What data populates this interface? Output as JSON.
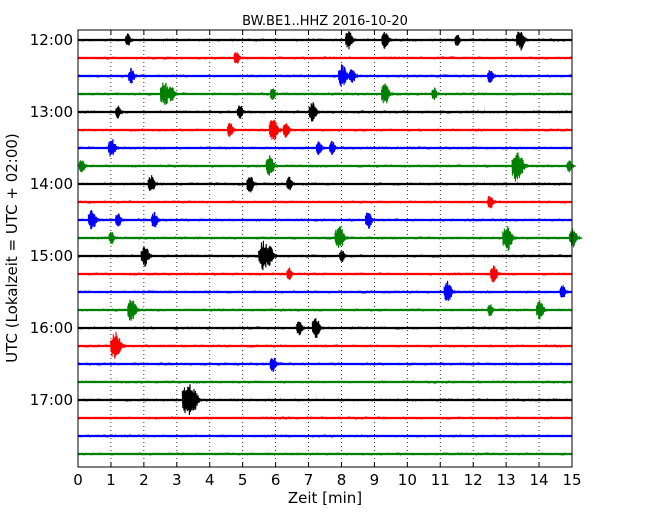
{
  "chart_data": {
    "type": "line",
    "title": "BW.BE1..HHZ 2016-10-20",
    "xlabel": "Zeit  [min]",
    "ylabel": "UTC (Lokalzeit = UTC + 02:00)",
    "xlim": [
      0,
      15
    ],
    "x_ticks": [
      "0",
      "1",
      "2",
      "3",
      "4",
      "5",
      "6",
      "7",
      "8",
      "9",
      "10",
      "11",
      "12",
      "13",
      "14",
      "15"
    ],
    "y_tick_labels": [
      "12:00",
      "13:00",
      "14:00",
      "15:00",
      "16:00",
      "17:00"
    ],
    "grid": "vertical dotted at each minute",
    "trace_interval_minutes": 15,
    "trace_colors": [
      "#000000",
      "#ff0000",
      "#0000ff",
      "#008000"
    ],
    "traces": [
      {
        "start": "12:00",
        "events": [
          [
            1.5,
            0.3
          ],
          [
            8.2,
            0.7
          ],
          [
            9.3,
            0.6
          ],
          [
            11.5,
            0.3
          ],
          [
            13.4,
            0.8
          ]
        ]
      },
      {
        "start": "12:15",
        "events": [
          [
            4.8,
            0.4
          ]
        ]
      },
      {
        "start": "12:30",
        "events": [
          [
            1.6,
            0.5
          ],
          [
            8.0,
            0.9
          ],
          [
            8.3,
            0.5
          ],
          [
            12.5,
            0.4
          ]
        ]
      },
      {
        "start": "12:45",
        "events": [
          [
            2.6,
            1.0
          ],
          [
            2.8,
            0.6
          ],
          [
            5.9,
            0.3
          ],
          [
            9.3,
            0.8
          ],
          [
            10.8,
            0.3
          ]
        ]
      },
      {
        "start": "13:00",
        "events": [
          [
            1.2,
            0.3
          ],
          [
            4.9,
            0.4
          ],
          [
            7.1,
            0.7
          ]
        ]
      },
      {
        "start": "13:15",
        "events": [
          [
            4.6,
            0.4
          ],
          [
            5.9,
            0.9
          ],
          [
            6.3,
            0.5
          ]
        ]
      },
      {
        "start": "13:30",
        "events": [
          [
            1.0,
            0.7
          ],
          [
            7.3,
            0.4
          ],
          [
            7.7,
            0.4
          ]
        ]
      },
      {
        "start": "13:45",
        "events": [
          [
            0.1,
            0.4
          ],
          [
            5.8,
            0.8
          ],
          [
            13.3,
            1.4
          ],
          [
            14.9,
            0.3
          ]
        ]
      },
      {
        "start": "14:00",
        "events": [
          [
            2.2,
            0.6
          ],
          [
            5.2,
            0.6
          ],
          [
            6.4,
            0.4
          ]
        ]
      },
      {
        "start": "14:15",
        "events": [
          [
            12.5,
            0.4
          ]
        ]
      },
      {
        "start": "14:30",
        "events": [
          [
            0.4,
            0.8
          ],
          [
            1.2,
            0.4
          ],
          [
            2.3,
            0.5
          ],
          [
            8.8,
            0.6
          ]
        ]
      },
      {
        "start": "14:45",
        "events": [
          [
            1.0,
            0.3
          ],
          [
            7.9,
            1.0
          ],
          [
            13.0,
            1.1
          ],
          [
            15.0,
            0.7
          ]
        ]
      },
      {
        "start": "15:00",
        "events": [
          [
            2.0,
            0.8
          ],
          [
            5.6,
            1.3
          ],
          [
            5.8,
            0.7
          ],
          [
            8.0,
            0.3
          ]
        ]
      },
      {
        "start": "15:15",
        "events": [
          [
            6.4,
            0.3
          ],
          [
            12.6,
            0.6
          ]
        ]
      },
      {
        "start": "15:30",
        "events": [
          [
            11.2,
            0.8
          ],
          [
            14.7,
            0.4
          ]
        ]
      },
      {
        "start": "15:45",
        "events": [
          [
            1.6,
            0.9
          ],
          [
            12.5,
            0.3
          ],
          [
            14.0,
            0.7
          ]
        ]
      },
      {
        "start": "16:00",
        "events": [
          [
            6.7,
            0.4
          ],
          [
            7.2,
            0.8
          ]
        ]
      },
      {
        "start": "16:15",
        "events": [
          [
            1.1,
            1.2
          ]
        ]
      },
      {
        "start": "16:30",
        "events": [
          [
            5.9,
            0.5
          ]
        ]
      },
      {
        "start": "16:45",
        "events": []
      },
      {
        "start": "17:00",
        "events": [
          [
            3.3,
            1.6
          ],
          [
            3.5,
            0.8
          ]
        ]
      },
      {
        "start": "17:15",
        "events": []
      },
      {
        "start": "17:30",
        "events": []
      },
      {
        "start": "17:45",
        "events": []
      }
    ]
  }
}
